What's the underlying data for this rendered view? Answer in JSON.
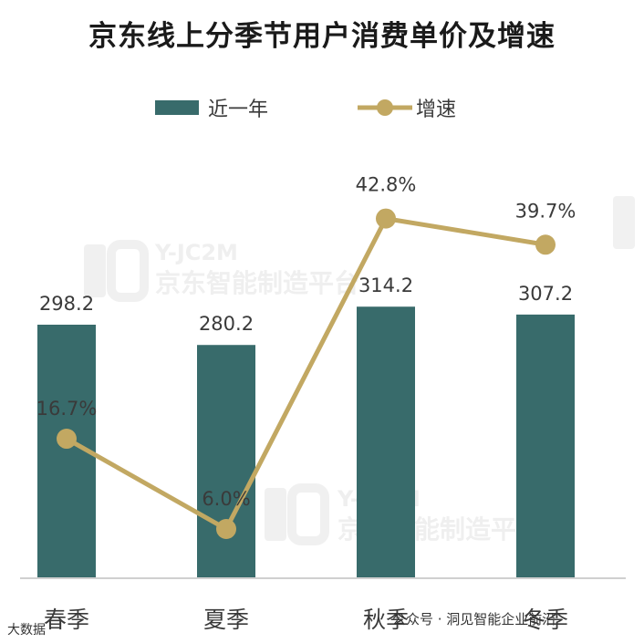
{
  "chart_data": {
    "type": "bar",
    "title": "京东线上分季节用户消费单价及增速",
    "categories": [
      "春季",
      "夏季",
      "秋季",
      "冬季"
    ],
    "series": [
      {
        "name": "近一年",
        "type": "bar",
        "values": [
          298.2,
          280.2,
          314.2,
          307.2
        ],
        "labels": [
          "298.2",
          "280.2",
          "314.2",
          "307.2"
        ]
      },
      {
        "name": "增速",
        "type": "line",
        "values": [
          16.7,
          6.0,
          42.8,
          39.7
        ],
        "labels": [
          "16.7%",
          "6.0%",
          "42.8%",
          "39.7%"
        ]
      }
    ],
    "legend_position": "top-center",
    "grid": false,
    "colors": {
      "bar": "#386b6b",
      "line": "#c2a862"
    }
  },
  "watermark": {
    "brand": "Y-JC2M",
    "platform": "京东智能制造平台",
    "footer_left": "大数据",
    "footer_right": "公众号 · 洞见智能企业前沿"
  }
}
